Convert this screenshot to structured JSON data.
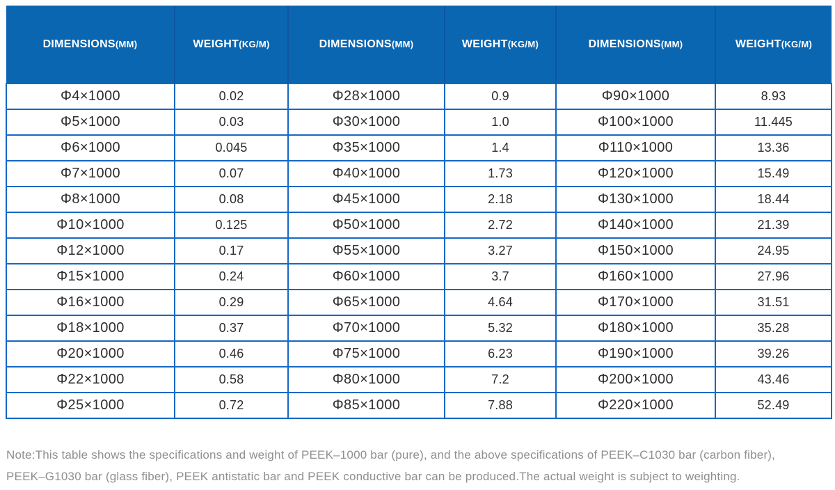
{
  "theme": {
    "header_bg": "#0a66b1",
    "header_divider_color": "#0d56a2",
    "grid_border_color": "#1568c4",
    "header_text_color": "#ffffff",
    "cell_text_color": "#2e2e2e",
    "note_text_color": "#8f8f8f",
    "page_bg": "#ffffff"
  },
  "chart_data": {
    "type": "table",
    "header_columns": [
      {
        "main": "DIMENSIONS",
        "unit": "(MM)"
      },
      {
        "main": "WEIGHT",
        "unit": "(KG/M)"
      },
      {
        "main": "DIMENSIONS",
        "unit": "(MM)"
      },
      {
        "main": "WEIGHT",
        "unit": "(KG/M)"
      },
      {
        "main": "DIMENSIONS",
        "unit": "(MM)"
      },
      {
        "main": "WEIGHT",
        "unit": "(KG/M)"
      }
    ],
    "rows": [
      [
        "Φ4×1000",
        "0.02",
        "Φ28×1000",
        "0.9",
        "Φ90×1000",
        "8.93"
      ],
      [
        "Φ5×1000",
        "0.03",
        "Φ30×1000",
        "1.0",
        "Φ100×1000",
        "11.445"
      ],
      [
        "Φ6×1000",
        "0.045",
        "Φ35×1000",
        "1.4",
        "Φ110×1000",
        "13.36"
      ],
      [
        "Φ7×1000",
        "0.07",
        "Φ40×1000",
        "1.73",
        "Φ120×1000",
        "15.49"
      ],
      [
        "Φ8×1000",
        "0.08",
        "Φ45×1000",
        "2.18",
        "Φ130×1000",
        "18.44"
      ],
      [
        "Φ10×1000",
        "0.125",
        "Φ50×1000",
        "2.72",
        "Φ140×1000",
        "21.39"
      ],
      [
        "Φ12×1000",
        "0.17",
        "Φ55×1000",
        "3.27",
        "Φ150×1000",
        "24.95"
      ],
      [
        "Φ15×1000",
        "0.24",
        "Φ60×1000",
        "3.7",
        "Φ160×1000",
        "27.96"
      ],
      [
        "Φ16×1000",
        "0.29",
        "Φ65×1000",
        "4.64",
        "Φ170×1000",
        "31.51"
      ],
      [
        "Φ18×1000",
        "0.37",
        "Φ70×1000",
        "5.32",
        "Φ180×1000",
        "35.28"
      ],
      [
        "Φ20×1000",
        "0.46",
        "Φ75×1000",
        "6.23",
        "Φ190×1000",
        "39.26"
      ],
      [
        "Φ22×1000",
        "0.58",
        "Φ80×1000",
        "7.2",
        "Φ200×1000",
        "43.46"
      ],
      [
        "Φ25×1000",
        "0.72",
        "Φ85×1000",
        "7.88",
        "Φ220×1000",
        "52.49"
      ]
    ]
  },
  "note": {
    "lines": [
      "Note:This table shows the specifications and weight of PEEK–1000 bar (pure), and the above specifications of PEEK–C1030 bar (carbon fiber),",
      "PEEK–G1030 bar (glass fiber), PEEK antistatic bar and PEEK conductive bar can be produced.The actual weight is subject to weighting."
    ]
  }
}
